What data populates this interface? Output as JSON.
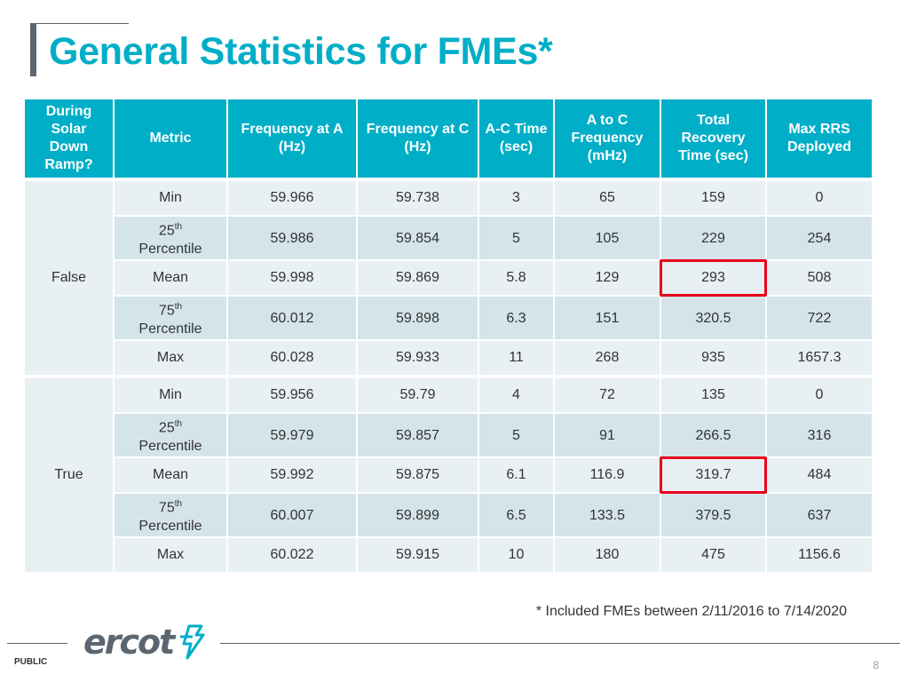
{
  "title": "General Statistics for FMEs*",
  "headers": [
    "During Solar Down Ramp?",
    "Metric",
    "Frequency at A (Hz)",
    "Frequency at C (Hz)",
    "A-C Time (sec)",
    "A to C Frequency (mHz)",
    "Total Recovery Time (sec)",
    "Max RRS Deployed"
  ],
  "labels": {
    "min": "Min",
    "p25_num": "25",
    "p75_num": "75",
    "ordinal": "th",
    "percentile": "Percentile",
    "mean": "Mean",
    "max": "Max"
  },
  "groups": [
    {
      "name": "False",
      "rows": [
        [
          "59.966",
          "59.738",
          "3",
          "65",
          "159",
          "0"
        ],
        [
          "59.986",
          "59.854",
          "5",
          "105",
          "229",
          "254"
        ],
        [
          "59.998",
          "59.869",
          "5.8",
          "129",
          "293",
          "508"
        ],
        [
          "60.012",
          "59.898",
          "6.3",
          "151",
          "320.5",
          "722"
        ],
        [
          "60.028",
          "59.933",
          "11",
          "268",
          "935",
          "1657.3"
        ]
      ]
    },
    {
      "name": "True",
      "rows": [
        [
          "59.956",
          "59.79",
          "4",
          "72",
          "135",
          "0"
        ],
        [
          "59.979",
          "59.857",
          "5",
          "91",
          "266.5",
          "316"
        ],
        [
          "59.992",
          "59.875",
          "6.1",
          "116.9",
          "319.7",
          "484"
        ],
        [
          "60.007",
          "59.899",
          "6.5",
          "133.5",
          "379.5",
          "637"
        ],
        [
          "60.022",
          "59.915",
          "10",
          "180",
          "475",
          "1156.6"
        ]
      ]
    }
  ],
  "highlight_color": "#e8001c",
  "header_color": "#00aec7",
  "footnote": "* Included FMEs between 2/11/2016 to 7/14/2020",
  "logo_text": "ercot",
  "classification": "PUBLIC",
  "page_number": "8"
}
